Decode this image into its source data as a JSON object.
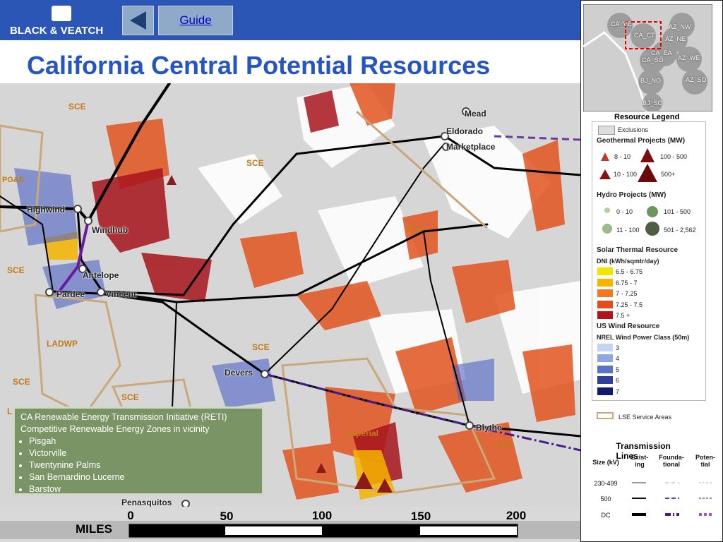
{
  "header": {
    "logo": "BLACK & VEATCH",
    "guide_button": "Guide",
    "title": "California Central Potential Resources"
  },
  "map": {
    "labels": [
      "SCE",
      "SCE",
      "PG&E",
      "SCE",
      "SCE",
      "LADWP",
      "SCE",
      "SCE",
      "SCE",
      "Imperial",
      "APS",
      "L"
    ],
    "substations": [
      "Highwind",
      "Windhub",
      "Antelope",
      "Pardee",
      "Vincent",
      "Mead",
      "Eldorado",
      "Marketplace",
      "Devers",
      "Blythe",
      "Penasquitos"
    ]
  },
  "inset": {
    "zones": [
      "CA_VE",
      "CA_CT",
      "AZ_NW",
      "AZ_NE",
      "CA_EA",
      "CA_SO",
      "AZ_WE",
      "AZ_SO",
      "BJ_NO",
      "BJ_SO"
    ]
  },
  "info_box": {
    "title": "CA Renewable Energy Transmission Initiative (RETI)",
    "subtitle": "Competitive Renewable Energy Zones in vicinity",
    "items": [
      "Pisgah",
      "Victorville",
      "Twentynine Palms",
      "San Bernardino Lucerne",
      "Barstow"
    ]
  },
  "scale": {
    "ticks": [
      "0",
      "50",
      "100",
      "150",
      "200"
    ],
    "unit": "MILES"
  },
  "legend": {
    "title": "Resource Legend",
    "exclusions": "Exclusions",
    "geothermal": {
      "title": "Geothermal Projects (MW)",
      "items": [
        "8 - 10",
        "10 - 100",
        "100 - 500",
        "500+"
      ]
    },
    "hydro": {
      "title": "Hydro Projects (MW)",
      "items": [
        "0 - 10",
        "11 - 100",
        "101 - 500",
        "501 - 2,562"
      ]
    },
    "solar": {
      "title": "Solar Thermal Resource",
      "subtitle": "DNI (kWh/sqmtr/day)",
      "items": [
        "6.5 - 6.75",
        "6.75 - 7",
        "7 - 7.25",
        "7.25 - 7.5",
        "7.5 +"
      ]
    },
    "wind": {
      "title": "US Wind Resource",
      "subtitle": "NREL Wind Power Class (50m)",
      "items": [
        "3",
        "4",
        "5",
        "6",
        "7"
      ]
    },
    "lse": "LSE Service Areas",
    "transmission": {
      "title": "Transmission Lines",
      "headers": [
        "Size (kV)",
        "Exist-\ning",
        "Founda-\ntional",
        "Poten-\ntial"
      ],
      "rows": [
        "230-499",
        "500",
        "DC"
      ]
    }
  }
}
